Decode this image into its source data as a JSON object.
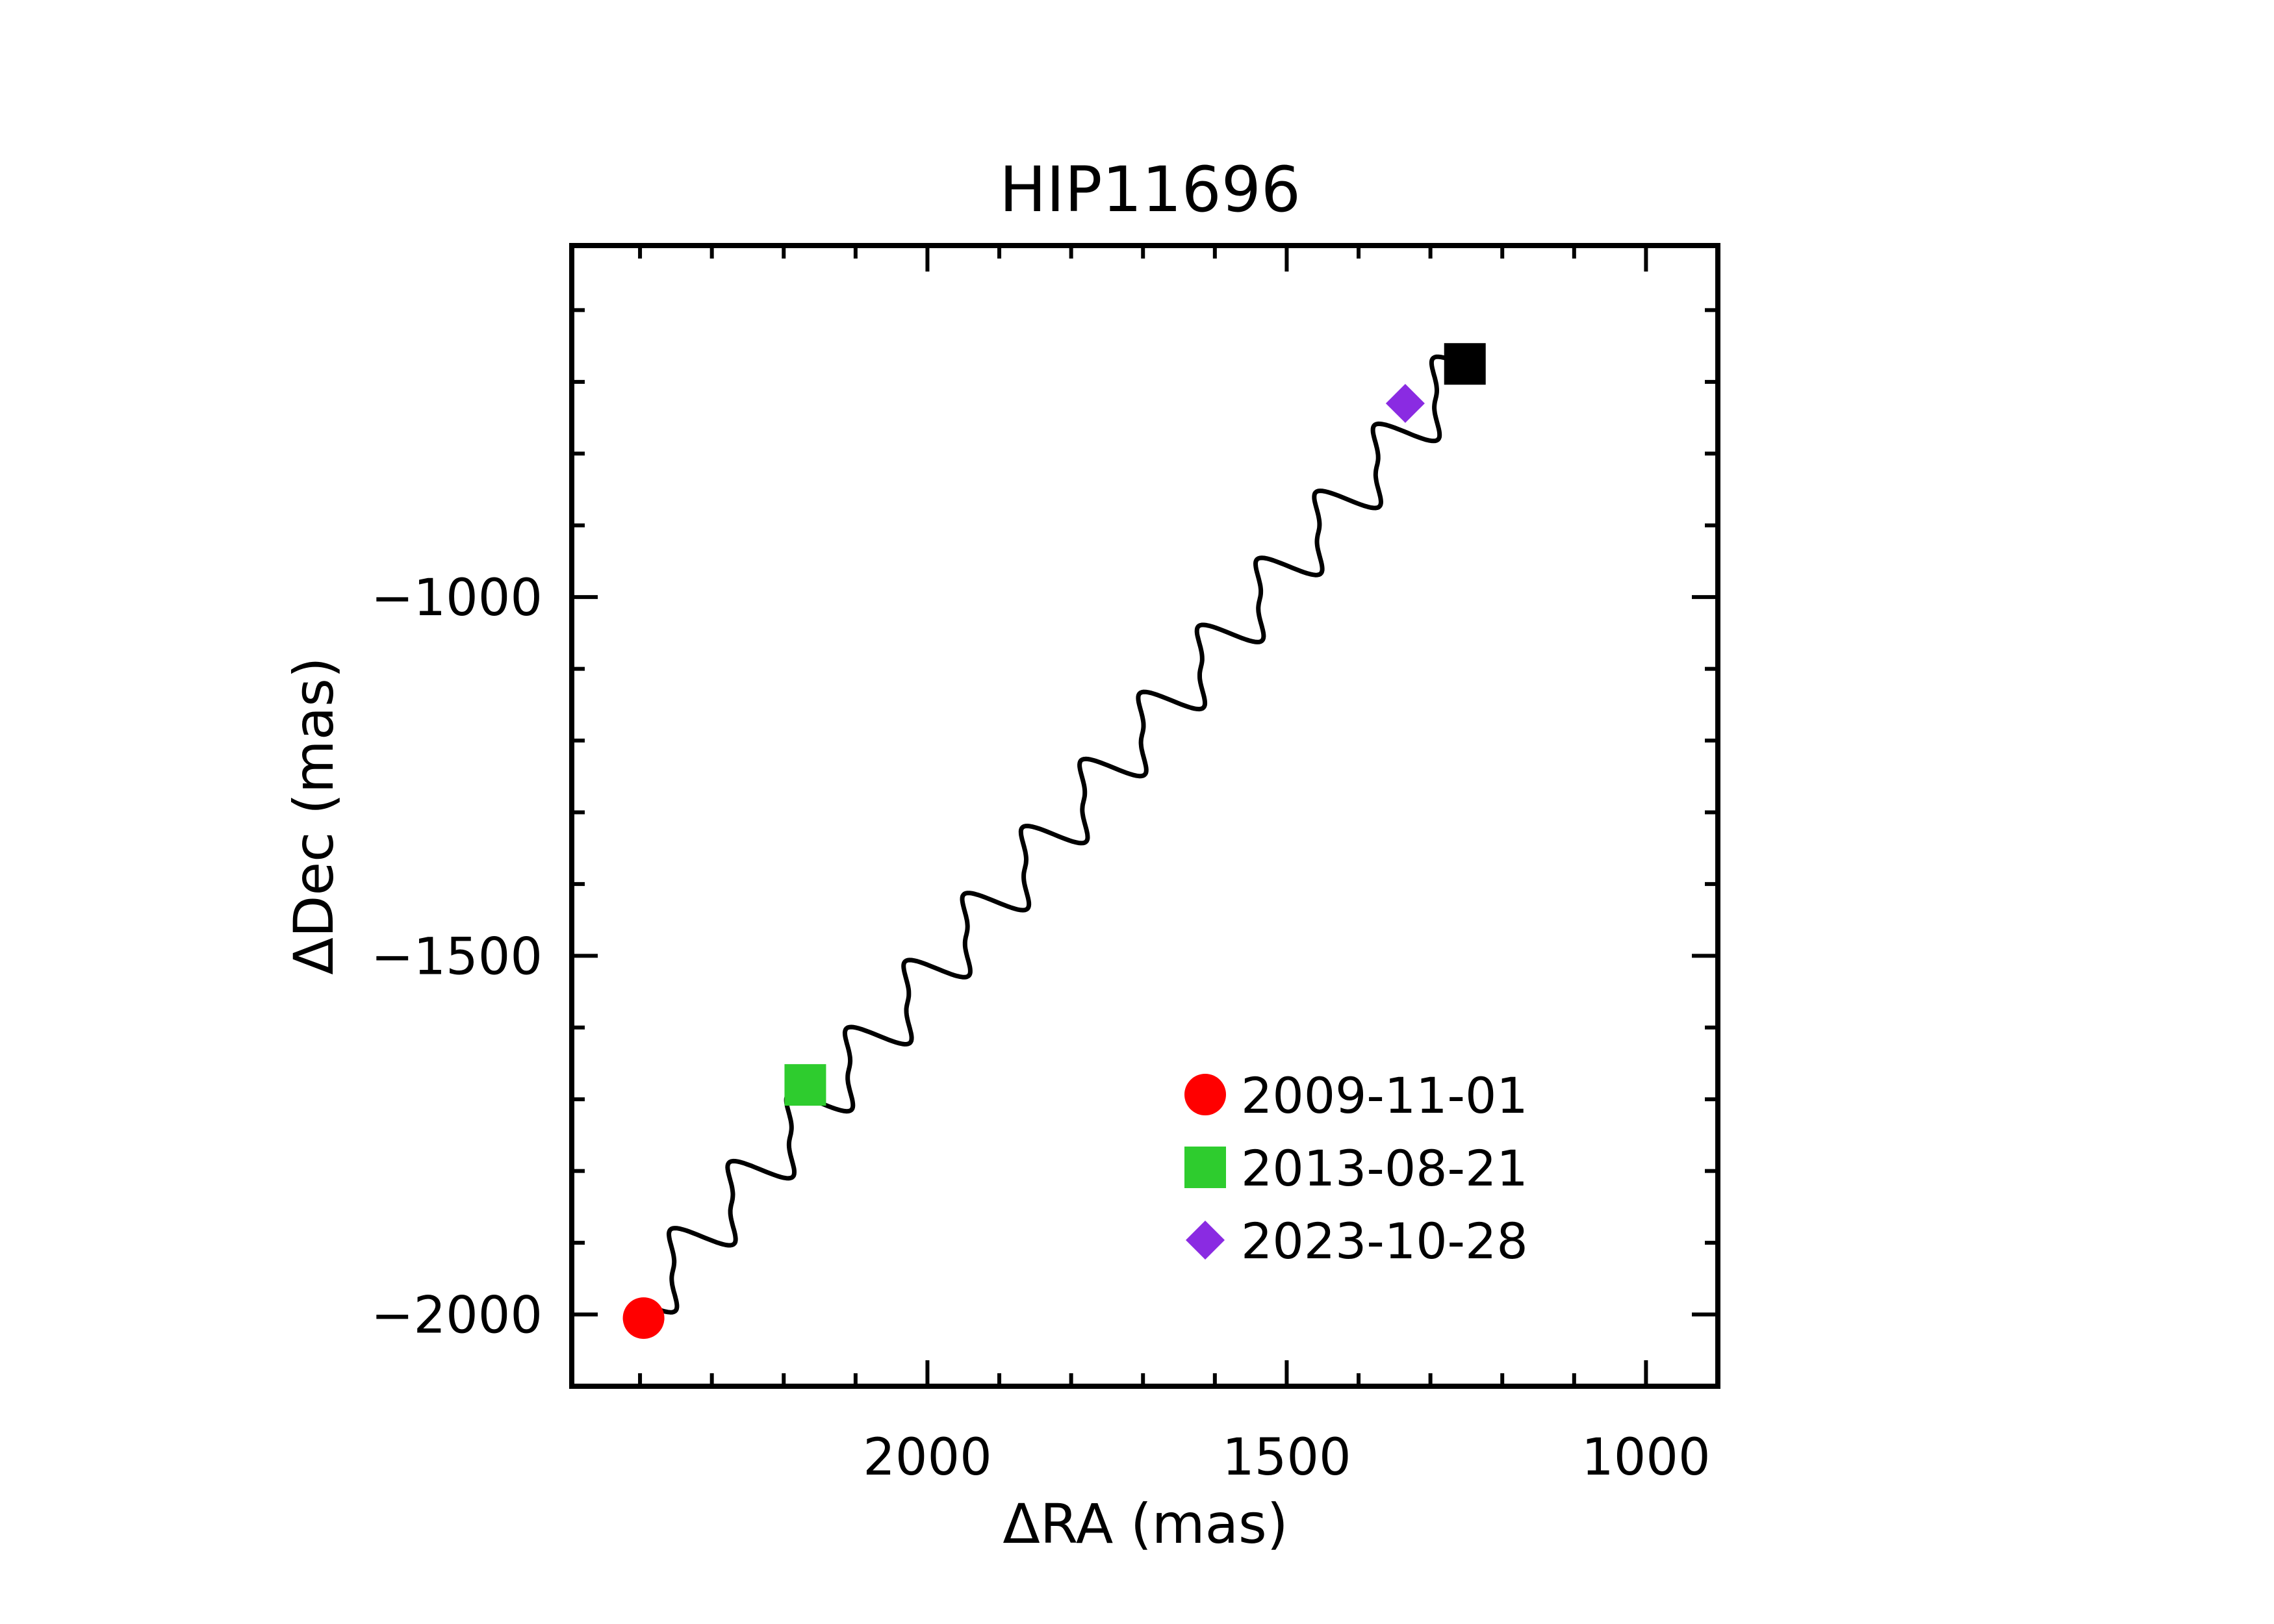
{
  "chart_data": {
    "type": "line",
    "title": "HIP11696",
    "xlabel": "ΔRA (mas)",
    "ylabel": "ΔDec (mas)",
    "xlim": [
      2495,
      900
    ],
    "ylim": [
      -2100,
      -510
    ],
    "x_ticks": [
      2000,
      1500,
      1000
    ],
    "y_ticks": [
      -1000,
      -1500,
      -2000
    ],
    "x_tick_labels": [
      "2000",
      "1500",
      "1000"
    ],
    "y_tick_labels": [
      "−1000",
      "−1500",
      "−2000"
    ],
    "grid": false,
    "track": {
      "start": [
        2395,
        -1985
      ],
      "end": [
        1252,
        -677
      ],
      "wiggle_count": 14,
      "color": "#000000"
    },
    "markers": [
      {
        "label": "2009-11-01",
        "x": 2395,
        "y": -2005,
        "shape": "circle",
        "color": "#ff0000"
      },
      {
        "label": "2013-08-21",
        "x": 2170,
        "y": -1680,
        "shape": "square",
        "color": "#2ecc2e"
      },
      {
        "label": "2023-10-28",
        "x": 1335,
        "y": -730,
        "shape": "diamond",
        "color": "#8a2be2"
      },
      {
        "label": "",
        "x": 1252,
        "y": -675,
        "shape": "square",
        "color": "#000000"
      }
    ],
    "legend_position": "lower-right",
    "legend": [
      {
        "label": "2009-11-01",
        "shape": "circle",
        "color": "#ff0000"
      },
      {
        "label": "2013-08-21",
        "shape": "square",
        "color": "#2ecc2e"
      },
      {
        "label": "2023-10-28",
        "shape": "diamond",
        "color": "#8a2be2"
      }
    ]
  }
}
